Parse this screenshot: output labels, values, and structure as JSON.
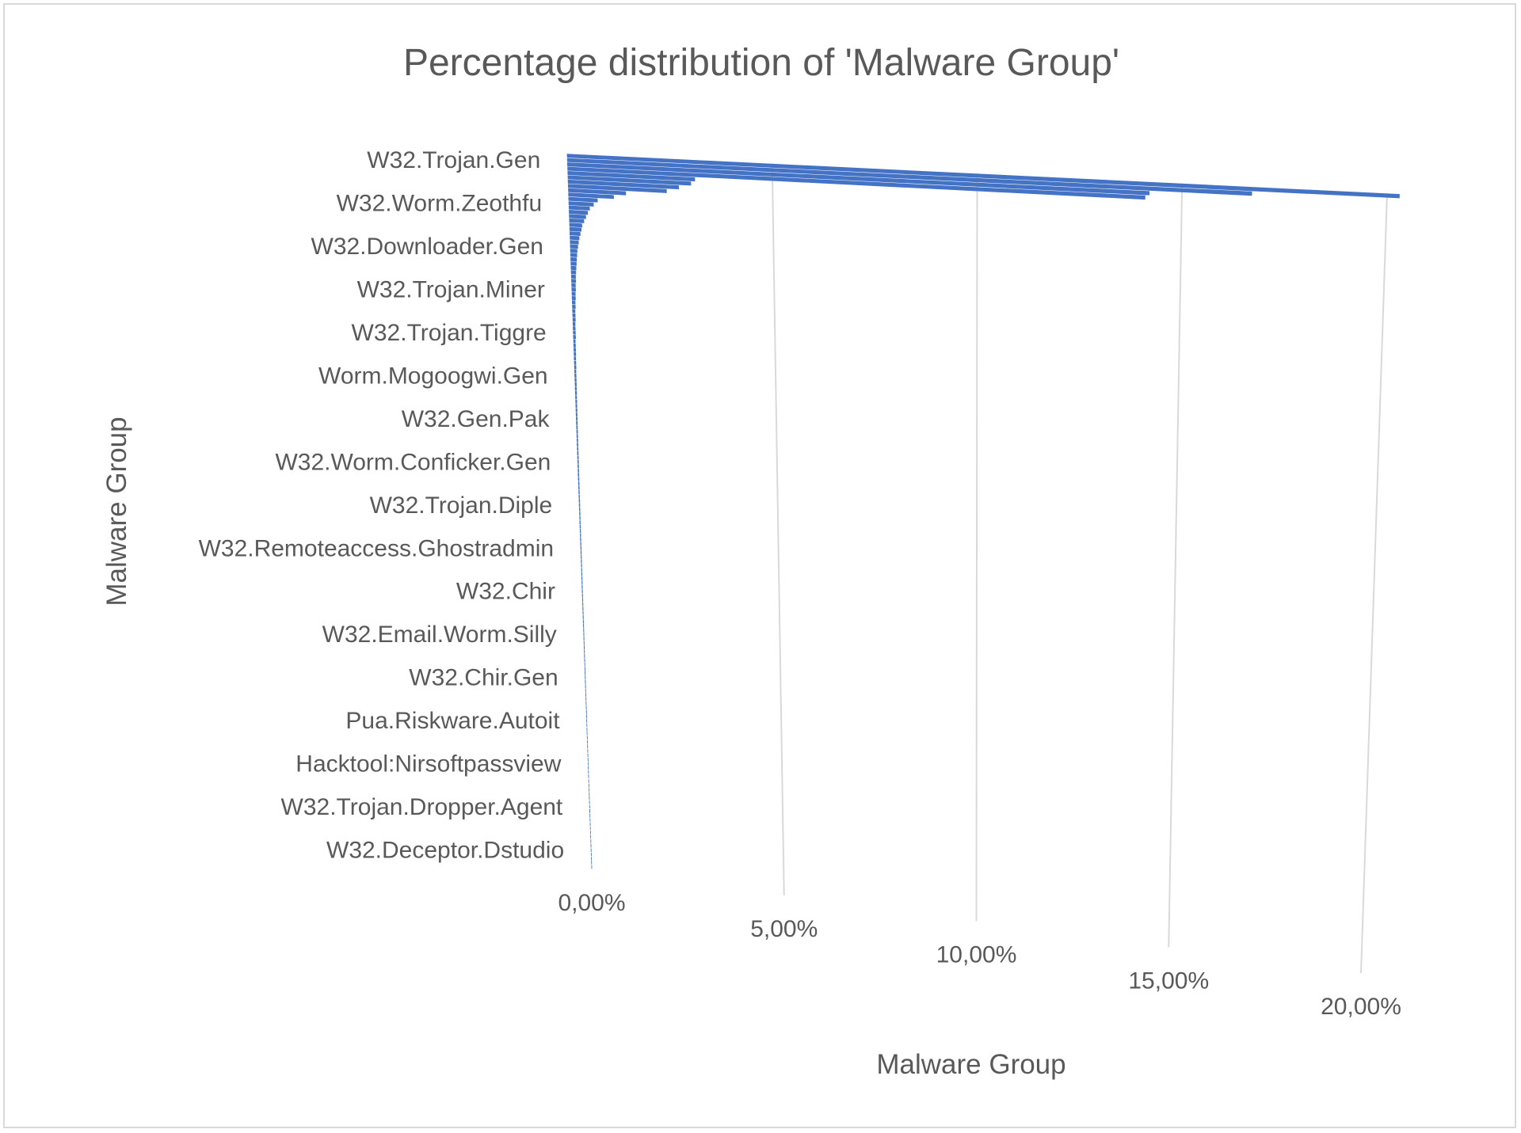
{
  "chart_data": {
    "type": "bar",
    "orientation": "horizontal",
    "perspective": "3d-tilted",
    "title": "Percentage distribution of 'Malware Group'",
    "xlabel": "Malware Group",
    "ylabel": "Malware Group",
    "xlim": [
      0,
      20
    ],
    "x_ticks": [
      "0,00%",
      "5,00%",
      "10,00%",
      "15,00%",
      "20,00%"
    ],
    "y_tick_labels": [
      "W32.Trojan.Gen",
      "W32.Worm.Zeothfu",
      "W32.Downloader.Gen",
      "W32.Trojan.Miner",
      "W32.Trojan.Tiggre",
      "Worm.Mogoogwi.Gen",
      "W32.Gen.Pak",
      "W32.Worm.Conficker.Gen",
      "W32.Trojan.Diple",
      "W32.Remoteaccess.Ghostradmin",
      "W32.Chir",
      "W32.Email.Worm.Silly",
      "W32.Chir.Gen",
      "Pua.Riskware.Autoit",
      "Hacktool:Nirsoftpassview",
      "W32.Trojan.Dropper.Agent",
      "W32.Deceptor.Dstudio"
    ],
    "series": [
      {
        "name": "Malware Group",
        "values": [
          20.3,
          16.7,
          14.2,
          14.1,
          3.1,
          3.0,
          2.7,
          2.4,
          1.4,
          1.1,
          0.7,
          0.6,
          0.5,
          0.45,
          0.4,
          0.35,
          0.3,
          0.28,
          0.25,
          0.22,
          0.2,
          0.18,
          0.16,
          0.15,
          0.14,
          0.13,
          0.12,
          0.11,
          0.1,
          0.1,
          0.09,
          0.09,
          0.08,
          0.08,
          0.07,
          0.07,
          0.06,
          0.06,
          0.06,
          0.05,
          0.05,
          0.05,
          0.05,
          0.04,
          0.04,
          0.04,
          0.04,
          0.035,
          0.035,
          0.035,
          0.03,
          0.03,
          0.03,
          0.03,
          0.028,
          0.028,
          0.026,
          0.026,
          0.024,
          0.024,
          0.022,
          0.022,
          0.02,
          0.02,
          0.02,
          0.019,
          0.019,
          0.018,
          0.018,
          0.017,
          0.017,
          0.016,
          0.016,
          0.015,
          0.015,
          0.015,
          0.014,
          0.014,
          0.013,
          0.013,
          0.013,
          0.012,
          0.012,
          0.012,
          0.011,
          0.011,
          0.011,
          0.01,
          0.01,
          0.01,
          0.01,
          0.009,
          0.009,
          0.009,
          0.009,
          0.008,
          0.008,
          0.008,
          0.008,
          0.007,
          0.007,
          0.007,
          0.007,
          0.006,
          0.006,
          0.006,
          0.006,
          0.006,
          0.005,
          0.005,
          0.005,
          0.005,
          0.005,
          0.004,
          0.004,
          0.004,
          0.004,
          0.004,
          0.003,
          0.003,
          0.003,
          0.003,
          0.003,
          0.003,
          0.002,
          0.002,
          0.002,
          0.002,
          0.002,
          0.002,
          0.002,
          0.001,
          0.001,
          0.001,
          0.001,
          0.001,
          0.001,
          0.001,
          0.001,
          0.001,
          0.001,
          0.001,
          0.001,
          0.001,
          0.001,
          0.001,
          0.001,
          0.001,
          0.001,
          0.001,
          0.001,
          0.001,
          0.001,
          0.001,
          0.001,
          0.001,
          0.001,
          0.001,
          0.001,
          0.001,
          0.001,
          0.001,
          0.001,
          0.001,
          0.001,
          0.001
        ]
      }
    ],
    "grid": true,
    "legend": "none",
    "colors": {
      "bar": "#4472c4",
      "grid": "#d9d9d9",
      "text": "#595959",
      "border": "#d9d9d9"
    }
  }
}
